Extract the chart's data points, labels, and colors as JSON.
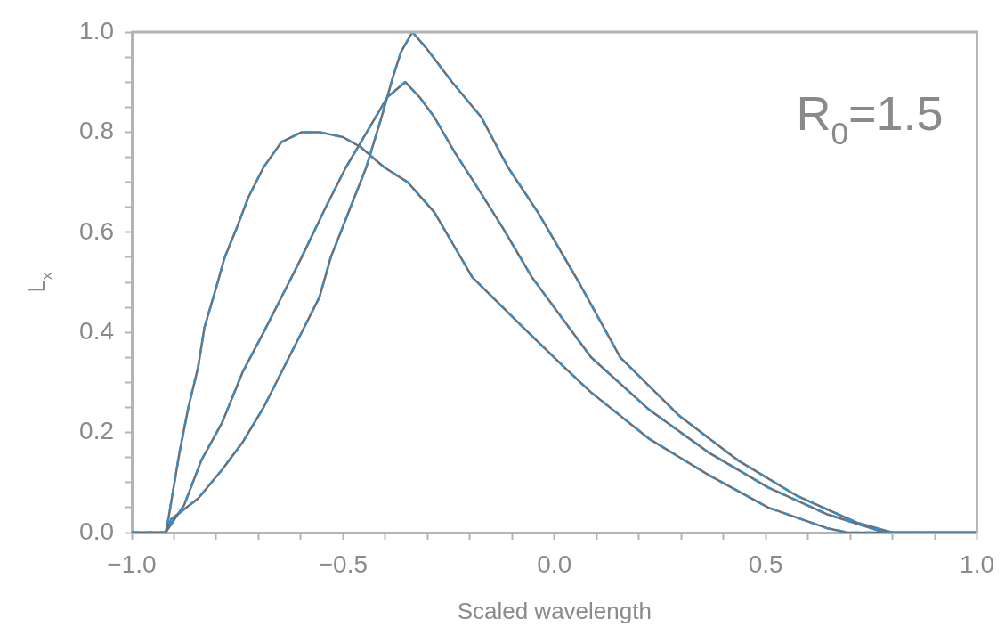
{
  "chart_data": {
    "type": "line",
    "xlabel": "Scaled wavelength",
    "ylabel": "L$_{x}$",
    "annotations": [
      "R$_{0}$=1.5"
    ],
    "xlim": [
      -1,
      1
    ],
    "ylim": [
      0,
      1
    ],
    "grid": false,
    "marker": "none",
    "xticks": [
      {
        "value": -1,
        "label": "−1.0"
      },
      {
        "value": -0.9,
        "label": null
      },
      {
        "value": -0.8,
        "label": null
      },
      {
        "value": -0.7,
        "label": null
      },
      {
        "value": -0.6,
        "label": null
      },
      {
        "value": -0.5,
        "label": "−0.5"
      },
      {
        "value": -0.4,
        "label": null
      },
      {
        "value": -0.3,
        "label": null
      },
      {
        "value": -0.2,
        "label": null
      },
      {
        "value": -0.1,
        "label": null
      },
      {
        "value": 0,
        "label": "0.0"
      },
      {
        "value": 0.1,
        "label": null
      },
      {
        "value": 0.2,
        "label": null
      },
      {
        "value": 0.3,
        "label": null
      },
      {
        "value": 0.4,
        "label": null
      },
      {
        "value": 0.5,
        "label": "0.5"
      },
      {
        "value": 0.6,
        "label": null
      },
      {
        "value": 0.7,
        "label": null
      },
      {
        "value": 0.8,
        "label": null
      },
      {
        "value": 0.9,
        "label": null
      },
      {
        "value": 1,
        "label": "1.0"
      }
    ],
    "yticks": [
      {
        "value": 0,
        "label": "0.0"
      },
      {
        "value": 0.05,
        "label": null
      },
      {
        "value": 0.1,
        "label": null
      },
      {
        "value": 0.15,
        "label": null
      },
      {
        "value": 0.2,
        "label": "0.2"
      },
      {
        "value": 0.25,
        "label": null
      },
      {
        "value": 0.3,
        "label": null
      },
      {
        "value": 0.35,
        "label": null
      },
      {
        "value": 0.4,
        "label": "0.4"
      },
      {
        "value": 0.45,
        "label": null
      },
      {
        "value": 0.5,
        "label": null
      },
      {
        "value": 0.55,
        "label": null
      },
      {
        "value": 0.6,
        "label": "0.6"
      },
      {
        "value": 0.65,
        "label": null
      },
      {
        "value": 0.7,
        "label": null
      },
      {
        "value": 0.75,
        "label": null
      },
      {
        "value": 0.8,
        "label": "0.8"
      },
      {
        "value": 0.85,
        "label": null
      },
      {
        "value": 0.9,
        "label": null
      },
      {
        "value": 0.95,
        "label": null
      },
      {
        "value": 1,
        "label": "1.0"
      }
    ],
    "series": [
      {
        "color": "#6e6e6e",
        "line_style": "solid",
        "x": [
          -1,
          -0.92,
          -0.916,
          -0.887,
          -0.866,
          -0.843,
          -0.828,
          -0.8,
          -0.78,
          -0.751,
          -0.724,
          -0.688,
          -0.646,
          -0.598,
          -0.556,
          -0.5,
          -0.458,
          -0.403,
          -0.347,
          -0.284,
          -0.194,
          -0.074,
          0.024,
          0.087,
          0.225,
          0.365,
          0.506,
          0.644,
          0.694,
          1
        ],
        "values": [
          0,
          0,
          0.014,
          0.16,
          0.25,
          0.33,
          0.41,
          0.49,
          0.55,
          0.61,
          0.67,
          0.73,
          0.78,
          0.8,
          0.8,
          0.79,
          0.77,
          0.73,
          0.7,
          0.64,
          0.51,
          0.41,
          0.33,
          0.28,
          0.187,
          0.115,
          0.05,
          0.009,
          0,
          0
        ]
      },
      {
        "color": "#6e6e6e",
        "line_style": "solid",
        "x": [
          -1,
          -0.92,
          -0.876,
          -0.835,
          -0.786,
          -0.738,
          -0.688,
          -0.64,
          -0.598,
          -0.541,
          -0.493,
          -0.437,
          -0.395,
          -0.353,
          -0.319,
          -0.284,
          -0.236,
          -0.19,
          -0.123,
          -0.053,
          0.087,
          0.225,
          0.365,
          0.506,
          0.644,
          0.749,
          0.78,
          1
        ],
        "values": [
          0,
          0,
          0.055,
          0.145,
          0.22,
          0.32,
          0.4,
          0.48,
          0.55,
          0.65,
          0.73,
          0.81,
          0.87,
          0.9,
          0.87,
          0.83,
          0.76,
          0.7,
          0.61,
          0.51,
          0.35,
          0.245,
          0.16,
          0.09,
          0.037,
          0.009,
          0,
          0
        ]
      },
      {
        "color": "#6e6e6e",
        "line_style": "solid",
        "x": [
          -1,
          -0.92,
          -0.906,
          -0.843,
          -0.786,
          -0.738,
          -0.688,
          -0.64,
          -0.598,
          -0.556,
          -0.529,
          -0.487,
          -0.445,
          -0.409,
          -0.382,
          -0.363,
          -0.336,
          -0.305,
          -0.242,
          -0.173,
          -0.11,
          -0.039,
          0.058,
          0.156,
          0.296,
          0.435,
          0.575,
          0.715,
          0.8,
          1
        ],
        "values": [
          0,
          0,
          0.027,
          0.068,
          0.126,
          0.18,
          0.25,
          0.33,
          0.4,
          0.47,
          0.55,
          0.64,
          0.73,
          0.83,
          0.91,
          0.96,
          1,
          0.97,
          0.9,
          0.83,
          0.73,
          0.64,
          0.5,
          0.35,
          0.233,
          0.144,
          0.073,
          0.02,
          0,
          0
        ]
      },
      {
        "color": "#3a8cc8",
        "line_style": "dashed",
        "x": [
          -1,
          -0.92,
          -0.916,
          -0.887,
          -0.866,
          -0.843,
          -0.828,
          -0.8,
          -0.78,
          -0.751,
          -0.724,
          -0.688,
          -0.646,
          -0.598,
          -0.556,
          -0.5,
          -0.458,
          -0.403,
          -0.347,
          -0.284,
          -0.194,
          -0.074,
          0.024,
          0.087,
          0.225,
          0.365,
          0.506,
          0.644,
          0.694,
          1
        ],
        "values": [
          0,
          0,
          0.014,
          0.16,
          0.25,
          0.33,
          0.41,
          0.49,
          0.55,
          0.61,
          0.67,
          0.73,
          0.78,
          0.8,
          0.8,
          0.79,
          0.77,
          0.73,
          0.7,
          0.64,
          0.51,
          0.41,
          0.33,
          0.28,
          0.187,
          0.115,
          0.05,
          0.009,
          0,
          0
        ]
      },
      {
        "color": "#3a8cc8",
        "line_style": "dashed",
        "x": [
          -1,
          -0.92,
          -0.876,
          -0.835,
          -0.786,
          -0.738,
          -0.688,
          -0.64,
          -0.598,
          -0.541,
          -0.493,
          -0.437,
          -0.395,
          -0.353,
          -0.319,
          -0.284,
          -0.236,
          -0.19,
          -0.123,
          -0.053,
          0.087,
          0.225,
          0.365,
          0.506,
          0.644,
          0.749,
          0.78,
          1
        ],
        "values": [
          0,
          0,
          0.055,
          0.145,
          0.22,
          0.32,
          0.4,
          0.48,
          0.55,
          0.65,
          0.73,
          0.81,
          0.87,
          0.9,
          0.87,
          0.83,
          0.76,
          0.7,
          0.61,
          0.51,
          0.35,
          0.245,
          0.16,
          0.09,
          0.037,
          0.009,
          0,
          0
        ]
      },
      {
        "color": "#3a8cc8",
        "line_style": "dashed",
        "x": [
          -1,
          -0.92,
          -0.906,
          -0.843,
          -0.786,
          -0.738,
          -0.688,
          -0.64,
          -0.598,
          -0.556,
          -0.529,
          -0.487,
          -0.445,
          -0.409,
          -0.382,
          -0.363,
          -0.336,
          -0.305,
          -0.242,
          -0.173,
          -0.11,
          -0.039,
          0.058,
          0.156,
          0.296,
          0.435,
          0.575,
          0.715,
          0.8,
          1
        ],
        "values": [
          0,
          0,
          0.027,
          0.068,
          0.126,
          0.18,
          0.25,
          0.33,
          0.4,
          0.47,
          0.55,
          0.64,
          0.73,
          0.83,
          0.91,
          0.96,
          1,
          0.97,
          0.9,
          0.83,
          0.73,
          0.64,
          0.5,
          0.35,
          0.233,
          0.144,
          0.073,
          0.02,
          0,
          0
        ]
      }
    ]
  }
}
